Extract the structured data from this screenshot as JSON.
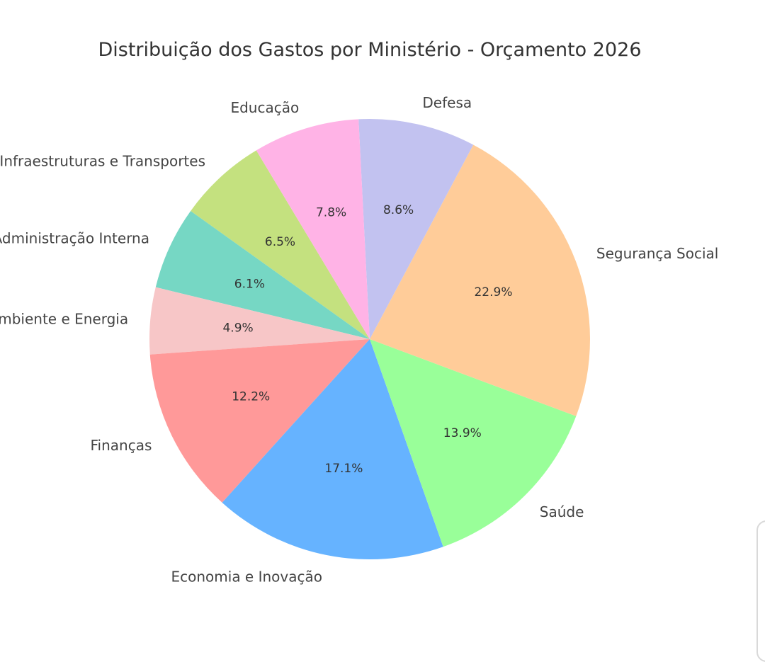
{
  "chart_data": {
    "type": "pie",
    "title": "Distribuição dos Gastos por Ministério - Orçamento 2026",
    "start_angle_deg": 121,
    "direction": "counterclockwise",
    "slices": [
      {
        "label": "Infraestruturas e Transportes",
        "value": 6.5,
        "pct_text": "6.5%",
        "color": "#c4e17f"
      },
      {
        "label": "Justiça e Administração Interna",
        "value": 6.1,
        "pct_text": "6.1%",
        "color": "#76d7c4"
      },
      {
        "label": "Ambiente e Energia",
        "value": 4.9,
        "pct_text": "4.9%",
        "color": "#f7c6c7"
      },
      {
        "label": "Finanças",
        "value": 12.2,
        "pct_text": "12.2%",
        "color": "#ff9999"
      },
      {
        "label": "Economia e Inovação",
        "value": 17.1,
        "pct_text": "17.1%",
        "color": "#66b3ff"
      },
      {
        "label": "Saúde",
        "value": 13.9,
        "pct_text": "13.9%",
        "color": "#99ff99"
      },
      {
        "label": "Segurança Social",
        "value": 22.9,
        "pct_text": "22.9%",
        "color": "#ffcc99"
      },
      {
        "label": "Defesa",
        "value": 8.6,
        "pct_text": "8.6%",
        "color": "#c2c2f0"
      },
      {
        "label": "Educação",
        "value": 7.8,
        "pct_text": "7.8%",
        "color": "#ffb3e6"
      }
    ]
  }
}
